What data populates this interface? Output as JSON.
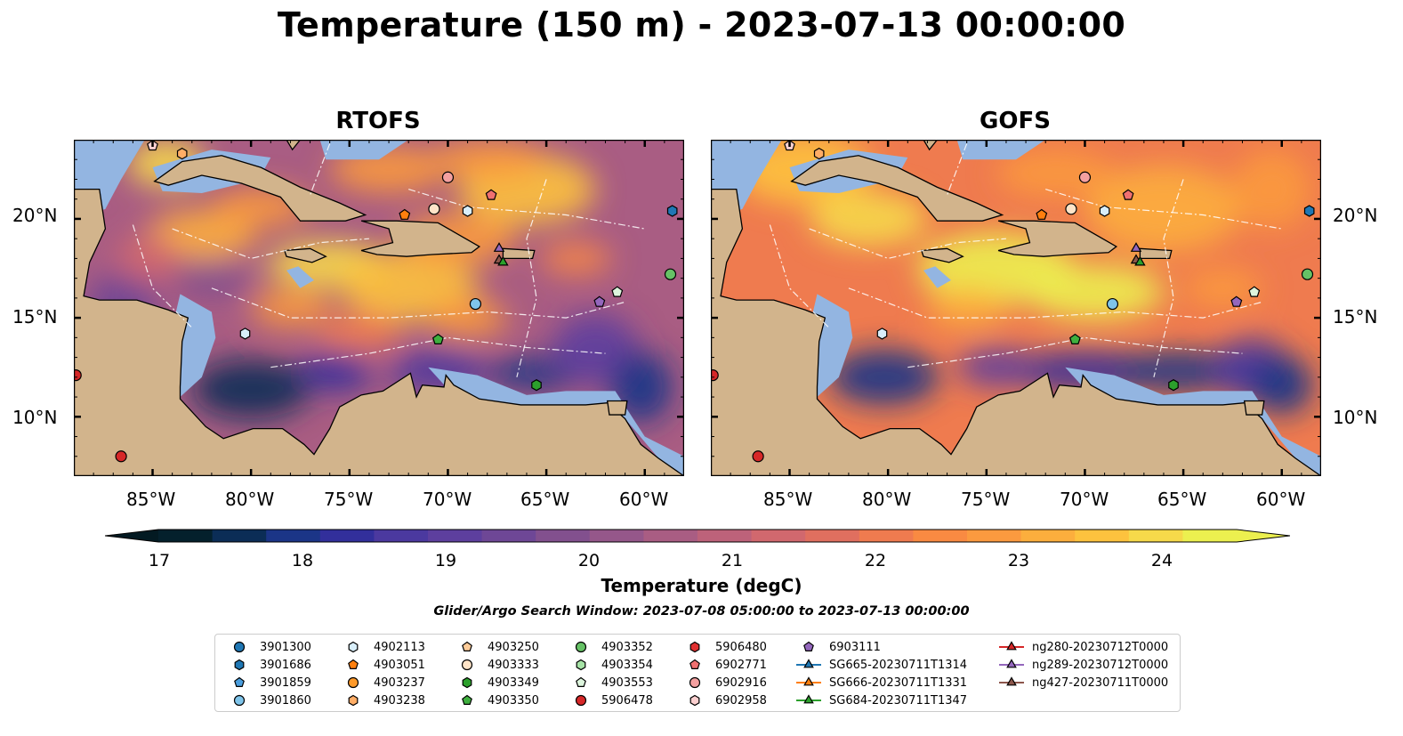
{
  "title": "Temperature (150 m) - 2023-07-13 00:00:00",
  "panels": [
    {
      "title": "RTOFS"
    },
    {
      "title": "GOFS"
    }
  ],
  "axes": {
    "lon_ticks": [
      "85°W",
      "80°W",
      "75°W",
      "70°W",
      "65°W",
      "60°W"
    ],
    "lat_ticks": [
      "20°N",
      "15°N",
      "10°N"
    ]
  },
  "colorbar": {
    "label": "Temperature (degC)",
    "ticks": [
      "17",
      "18",
      "19",
      "20",
      "21",
      "22",
      "23",
      "24"
    ],
    "range": [
      16.5,
      24.5
    ],
    "colors": [
      "#04202c",
      "#0b2d56",
      "#1b3587",
      "#322f9b",
      "#4b399f",
      "#5d3f9e",
      "#6e4796",
      "#82508e",
      "#95578a",
      "#a95d83",
      "#bd627a",
      "#d1686e",
      "#e06f5f",
      "#ef7b4f",
      "#f98a42",
      "#fb9a3f",
      "#fcae3d",
      "#fdc23e",
      "#f6d94a",
      "#ecf04f"
    ]
  },
  "search_window": "Glider/Argo Search Window: 2023-07-08 05:00:00 to 2023-07-13 00:00:00",
  "legend": [
    {
      "label": "3901300",
      "marker": "circle",
      "color": "#1f77b4"
    },
    {
      "label": "3901686",
      "marker": "hexagon",
      "color": "#1f77b4"
    },
    {
      "label": "3901859",
      "marker": "pentagon",
      "color": "#4a9ede"
    },
    {
      "label": "3901860",
      "marker": "circle",
      "color": "#7fc4ea"
    },
    {
      "label": "4902113",
      "marker": "hexagon",
      "color": "#d8eefa"
    },
    {
      "label": "4903051",
      "marker": "pentagon",
      "color": "#ff7f0e"
    },
    {
      "label": "4903237",
      "marker": "circle",
      "color": "#ff9a2a"
    },
    {
      "label": "4903238",
      "marker": "hexagon",
      "color": "#ffad66"
    },
    {
      "label": "4903250",
      "marker": "pentagon",
      "color": "#ffcc99"
    },
    {
      "label": "4903333",
      "marker": "circle",
      "color": "#ffe4c8"
    },
    {
      "label": "4903349",
      "marker": "hexagon",
      "color": "#2ca02c"
    },
    {
      "label": "4903350",
      "marker": "pentagon",
      "color": "#3fb03f"
    },
    {
      "label": "4903352",
      "marker": "circle",
      "color": "#66c266"
    },
    {
      "label": "4903354",
      "marker": "hexagon",
      "color": "#a6e3a6"
    },
    {
      "label": "4903553",
      "marker": "pentagon",
      "color": "#ddf5dd"
    },
    {
      "label": "5906478",
      "marker": "circle",
      "color": "#d62728"
    },
    {
      "label": "5906480",
      "marker": "hexagon",
      "color": "#e03030"
    },
    {
      "label": "6902771",
      "marker": "pentagon",
      "color": "#f07070"
    },
    {
      "label": "6902916",
      "marker": "circle",
      "color": "#f4a0a0"
    },
    {
      "label": "6902958",
      "marker": "hexagon",
      "color": "#fcd0d0"
    },
    {
      "label": "6903111",
      "marker": "pentagon",
      "color": "#9467bd"
    },
    {
      "label": "SG665-20230711T1314",
      "marker": "triangle-line",
      "color": "#1f77b4"
    },
    {
      "label": "SG666-20230711T1331",
      "marker": "triangle-line",
      "color": "#ff7f0e"
    },
    {
      "label": "SG684-20230711T1347",
      "marker": "triangle-line",
      "color": "#2ca02c"
    },
    {
      "label": "ng280-20230712T0000",
      "marker": "triangle-line",
      "color": "#d62728"
    },
    {
      "label": "ng289-20230712T0000",
      "marker": "triangle-line",
      "color": "#9467bd"
    },
    {
      "label": "ng427-20230711T0000",
      "marker": "triangle-line",
      "color": "#8c564b"
    }
  ],
  "map_extent": {
    "lon": [
      -89,
      -58
    ],
    "lat": [
      7,
      24
    ]
  },
  "observations": [
    {
      "lon": -85,
      "lat": 23.7,
      "marker": "pentagon",
      "color": "#fcd0d0"
    },
    {
      "lon": -83.5,
      "lat": 23.3,
      "marker": "hexagon",
      "color": "#ffad66"
    },
    {
      "lon": -70,
      "lat": 22.1,
      "marker": "circle",
      "color": "#f4a0a0"
    },
    {
      "lon": -67.8,
      "lat": 21.2,
      "marker": "pentagon",
      "color": "#f07070"
    },
    {
      "lon": -72.2,
      "lat": 20.2,
      "marker": "pentagon",
      "color": "#ff7f0e"
    },
    {
      "lon": -70.7,
      "lat": 20.5,
      "marker": "circle",
      "color": "#ffe4c8"
    },
    {
      "lon": -69,
      "lat": 20.4,
      "marker": "hexagon",
      "color": "#d8eefa"
    },
    {
      "lon": -58.6,
      "lat": 20.4,
      "marker": "hexagon",
      "color": "#1f77b4"
    },
    {
      "lon": -67.4,
      "lat": 18.5,
      "marker": "triangle",
      "color": "#9467bd"
    },
    {
      "lon": -67.4,
      "lat": 17.9,
      "marker": "triangle",
      "color": "#8c564b"
    },
    {
      "lon": -67.2,
      "lat": 17.8,
      "marker": "triangle",
      "color": "#2ca02c"
    },
    {
      "lon": -58.7,
      "lat": 17.2,
      "marker": "circle",
      "color": "#66c266"
    },
    {
      "lon": -61.4,
      "lat": 16.3,
      "marker": "pentagon",
      "color": "#ddf5dd"
    },
    {
      "lon": -62.3,
      "lat": 15.8,
      "marker": "pentagon",
      "color": "#9467bd"
    },
    {
      "lon": -68.6,
      "lat": 15.7,
      "marker": "circle",
      "color": "#7fc4ea"
    },
    {
      "lon": -80.3,
      "lat": 14.2,
      "marker": "hexagon",
      "color": "#d8eefa"
    },
    {
      "lon": -70.5,
      "lat": 13.9,
      "marker": "pentagon",
      "color": "#3fb03f"
    },
    {
      "lon": -65.5,
      "lat": 11.6,
      "marker": "hexagon",
      "color": "#2ca02c"
    },
    {
      "lon": -88.9,
      "lat": 12.1,
      "marker": "circle",
      "color": "#d62728"
    },
    {
      "lon": -86.6,
      "lat": 8.0,
      "marker": "circle",
      "color": "#d62728"
    }
  ]
}
